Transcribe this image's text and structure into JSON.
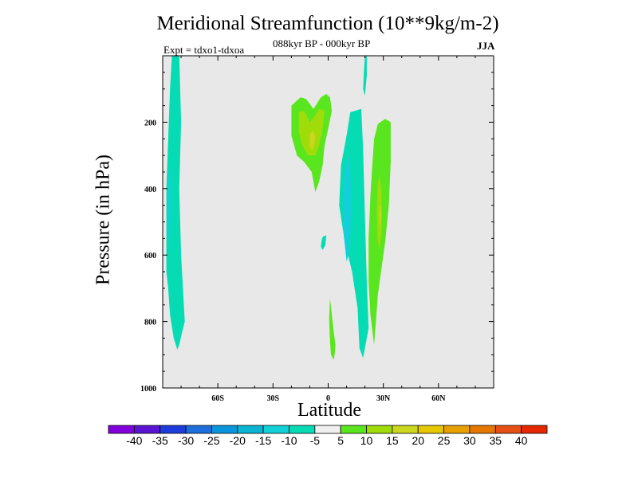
{
  "chart_data": {
    "type": "contour",
    "title": "Meridional Streamfunction (10**9kg/m-2)",
    "subtitle": "088kyr BP - 000kyr BP",
    "experiment": "Expt = tdxo1-tdxoa",
    "season": "JJA",
    "xlabel": "Latitude",
    "ylabel": "Pressure (in hPa)",
    "xlim": [
      -90,
      90
    ],
    "ylim": [
      1000,
      0
    ],
    "x_ticks": [
      {
        "value": -60,
        "label": "60S"
      },
      {
        "value": -30,
        "label": "30S"
      },
      {
        "value": 0,
        "label": "0"
      },
      {
        "value": 30,
        "label": "30N"
      },
      {
        "value": 60,
        "label": "60N"
      }
    ],
    "y_ticks": [
      {
        "value": 200,
        "label": "200"
      },
      {
        "value": 400,
        "label": "400"
      },
      {
        "value": 600,
        "label": "600"
      },
      {
        "value": 800,
        "label": "800"
      },
      {
        "value": 1000,
        "label": "1000"
      }
    ],
    "background_color": "#e8e8e8",
    "regions": [
      {
        "level": "-10 to -5",
        "color": "#06dcb4",
        "points": [
          [
            -85,
            0
          ],
          [
            -81,
            0
          ],
          [
            -80,
            200
          ],
          [
            -81,
            400
          ],
          [
            -80,
            600
          ],
          [
            -79,
            700
          ],
          [
            -78,
            800
          ],
          [
            -80,
            845
          ],
          [
            -81,
            870
          ],
          [
            -82,
            885
          ],
          [
            -84,
            850
          ],
          [
            -86,
            780
          ],
          [
            -87,
            700
          ],
          [
            -88,
            650
          ],
          [
            -88,
            400
          ],
          [
            -87,
            250
          ],
          [
            -86,
            100
          ],
          [
            -85,
            0
          ]
        ]
      },
      {
        "level": "-15 to -10",
        "color": "#13d0d8",
        "points": [
          [
            -86,
            330
          ],
          [
            -85,
            380
          ],
          [
            -85.5,
            450
          ],
          [
            -86,
            540
          ],
          [
            -86.5,
            600
          ],
          [
            -87,
            540
          ],
          [
            -87,
            430
          ],
          [
            -86.5,
            360
          ],
          [
            -86,
            330
          ]
        ]
      },
      {
        "level": "-10 to -5",
        "color": "#06dcb4",
        "points": [
          [
            20,
            0
          ],
          [
            21,
            0
          ],
          [
            21,
            60
          ],
          [
            20,
            120
          ],
          [
            19,
            100
          ],
          [
            19.5,
            40
          ],
          [
            20,
            0
          ]
        ]
      },
      {
        "level": "-10 to -5",
        "color": "#06dcb4",
        "points": [
          [
            10,
            240
          ],
          [
            12,
            170
          ],
          [
            18,
            160
          ],
          [
            19,
            280
          ],
          [
            20,
            480
          ],
          [
            21,
            680
          ],
          [
            22,
            820
          ],
          [
            20,
            880
          ],
          [
            19,
            910
          ],
          [
            17,
            880
          ],
          [
            16,
            760
          ],
          [
            13,
            650
          ],
          [
            9,
            560
          ],
          [
            6,
            450
          ],
          [
            7,
            330
          ],
          [
            10,
            240
          ]
        ]
      },
      {
        "level": "-15 to -10",
        "color": "#13d0d8",
        "points": [
          [
            9,
            350
          ],
          [
            11,
            300
          ],
          [
            12,
            330
          ],
          [
            12.5,
            450
          ],
          [
            12,
            560
          ],
          [
            11,
            600
          ],
          [
            10,
            620
          ],
          [
            8.5,
            540
          ],
          [
            8,
            450
          ],
          [
            9,
            350
          ]
        ]
      },
      {
        "level": "-10 to -5",
        "color": "#06dcb4",
        "points": [
          [
            -3,
            545
          ],
          [
            -1,
            540
          ],
          [
            -1.5,
            570
          ],
          [
            -3,
            585
          ],
          [
            -4,
            575
          ],
          [
            -3.5,
            555
          ],
          [
            -3,
            545
          ]
        ]
      },
      {
        "level": "5 to 10",
        "color": "#5ae61e",
        "points": [
          [
            -20,
            150
          ],
          [
            -15,
            125
          ],
          [
            -12,
            130
          ],
          [
            -8,
            160
          ],
          [
            -4,
            125
          ],
          [
            -1,
            115
          ],
          [
            1,
            125
          ],
          [
            2,
            165
          ],
          [
            0,
            220
          ],
          [
            -2,
            270
          ],
          [
            -3,
            330
          ],
          [
            -5,
            380
          ],
          [
            -7,
            410
          ],
          [
            -9,
            350
          ],
          [
            -13,
            320
          ],
          [
            -17,
            300
          ],
          [
            -20,
            240
          ],
          [
            -20,
            150
          ]
        ]
      },
      {
        "level": "10 to 15",
        "color": "#a0dc0a",
        "points": [
          [
            -16,
            170
          ],
          [
            -13,
            165
          ],
          [
            -10,
            200
          ],
          [
            -7,
            180
          ],
          [
            -5,
            160
          ],
          [
            -2,
            165
          ],
          [
            -3,
            220
          ],
          [
            -5,
            270
          ],
          [
            -7,
            300
          ],
          [
            -11,
            300
          ],
          [
            -14,
            270
          ],
          [
            -16,
            230
          ],
          [
            -16,
            170
          ]
        ]
      },
      {
        "level": "15 to 20",
        "color": "#ccd61e",
        "points": [
          [
            -10,
            235
          ],
          [
            -8,
            225
          ],
          [
            -7,
            245
          ],
          [
            -8,
            275
          ],
          [
            -9,
            285
          ],
          [
            -10,
            270
          ],
          [
            -10,
            235
          ]
        ]
      },
      {
        "level": "5 to 10",
        "color": "#5ae61e",
        "points": [
          [
            27,
            205
          ],
          [
            31,
            190
          ],
          [
            34,
            200
          ],
          [
            34,
            320
          ],
          [
            33,
            450
          ],
          [
            31,
            560
          ],
          [
            29,
            640
          ],
          [
            27,
            720
          ],
          [
            26,
            800
          ],
          [
            25,
            870
          ],
          [
            23,
            780
          ],
          [
            22,
            680
          ],
          [
            22,
            550
          ],
          [
            23,
            420
          ],
          [
            24,
            330
          ],
          [
            25,
            250
          ],
          [
            27,
            205
          ]
        ]
      },
      {
        "level": "10 to 15",
        "color": "#a0dc0a",
        "points": [
          [
            27,
            380
          ],
          [
            28,
            360
          ],
          [
            29,
            420
          ],
          [
            29,
            520
          ],
          [
            28,
            580
          ],
          [
            27,
            560
          ],
          [
            26.5,
            470
          ],
          [
            27,
            380
          ]
        ]
      },
      {
        "level": "15 to 20",
        "color": "#ccd61e",
        "points": [
          [
            28,
            455
          ],
          [
            28.5,
            450
          ],
          [
            29,
            480
          ],
          [
            28.5,
            510
          ],
          [
            28,
            505
          ],
          [
            28,
            455
          ]
        ]
      },
      {
        "level": "5 to 10",
        "color": "#5ae61e",
        "points": [
          [
            1,
            730
          ],
          [
            2,
            780
          ],
          [
            3,
            830
          ],
          [
            4,
            870
          ],
          [
            3.5,
            900
          ],
          [
            3,
            915
          ],
          [
            1.5,
            900
          ],
          [
            1,
            860
          ],
          [
            0.5,
            790
          ],
          [
            1,
            730
          ]
        ]
      }
    ],
    "colorbar": {
      "labels": [
        "-40",
        "-35",
        "-30",
        "-25",
        "-20",
        "-15",
        "-10",
        "-5",
        "5",
        "10",
        "15",
        "20",
        "25",
        "30",
        "35",
        "40"
      ],
      "colors": [
        "#8200dc",
        "#5a14d2",
        "#1e3cdc",
        "#1e6edc",
        "#0a96dc",
        "#0ab4d2",
        "#13d0d8",
        "#06dcb4",
        "#f0f0f0",
        "#5ae61e",
        "#a0dc0a",
        "#ccd61e",
        "#e6c800",
        "#e6a000",
        "#e67800",
        "#e65014",
        "#e62800"
      ]
    }
  }
}
